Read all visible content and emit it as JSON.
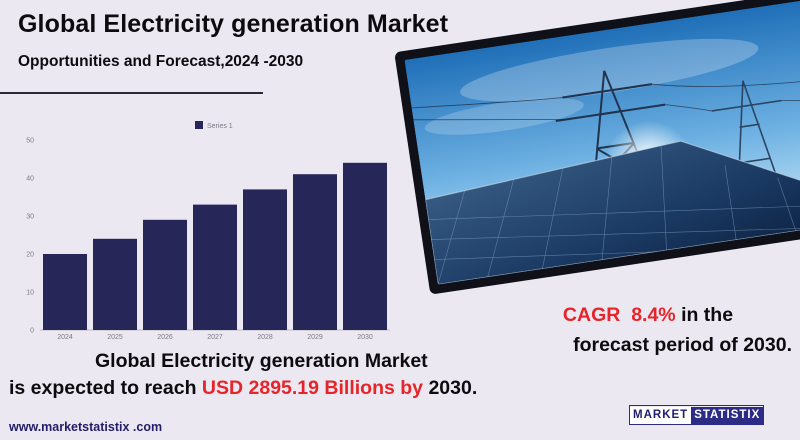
{
  "header": {
    "title": "Global Electricity generation Market",
    "subtitle": "Opportunities and Forecast,2024 -2030"
  },
  "chart_data": {
    "type": "bar",
    "categories": [
      "2024",
      "2025",
      "2026",
      "2027",
      "2028",
      "2029",
      "2030"
    ],
    "series": [
      {
        "name": "Series 1",
        "values": [
          20,
          24,
          29,
          33,
          37,
          41,
          44
        ]
      }
    ],
    "ylim": [
      0,
      50
    ],
    "yticks": [
      0,
      10,
      20,
      30,
      40,
      50
    ],
    "grid": false,
    "legend_position": "top",
    "bar_color": "#262659"
  },
  "cagr": {
    "label": "CAGR",
    "value": "8.4%",
    "text1": "in the",
    "text2": "forecast period of 2030."
  },
  "conclusion": {
    "line1": "Global Electricity generation Market",
    "line2_prefix": "is expected to reach",
    "amount": "USD  2895.19 Billions by",
    "year": "2030."
  },
  "footer": {
    "website": "www.marketstatistix .com",
    "logo_left": "MARKET",
    "logo_right": "STATISTIX"
  },
  "colors": {
    "background": "#ece8f1",
    "accent_red": "#e5252a",
    "brand_navy": "#262659"
  },
  "photo": {
    "icon": "solar-panels-and-power-pylons-photo"
  }
}
